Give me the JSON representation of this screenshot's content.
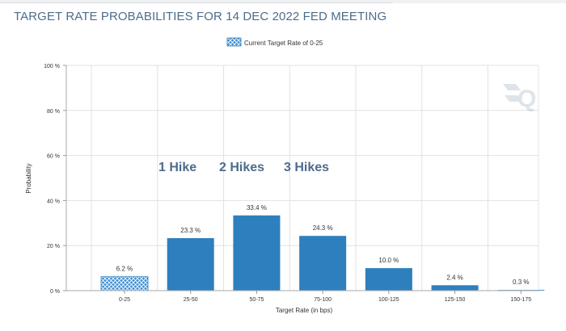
{
  "title": "TARGET RATE PROBABILITIES FOR 14 DEC 2022 FED MEETING",
  "legend_label": "Current Target Rate of 0-25",
  "annotations": [
    "1 Hike",
    "2 Hikes",
    "3 Hikes"
  ],
  "watermark": "Q",
  "colors": {
    "bar": "#2e7fbd",
    "current_bar": "#3d8ed0",
    "annotation": "#4d6c8c",
    "title": "#4d6c8c",
    "grid": "#e1e1e1"
  },
  "chart_data": {
    "type": "bar",
    "title": "TARGET RATE PROBABILITIES FOR 14 DEC 2022 FED MEETING",
    "xlabel": "Target Rate (in bps)",
    "ylabel": "Probability",
    "categories": [
      "0-25",
      "25-50",
      "50-75",
      "75-100",
      "100-125",
      "125-150",
      "150-175"
    ],
    "values": [
      6.2,
      23.3,
      33.4,
      24.3,
      10.0,
      2.4,
      0.3
    ],
    "data_labels": [
      "6.2 %",
      "23.3 %",
      "33.4 %",
      "24.3 %",
      "10.0 %",
      "2.4 %",
      "0.3 %"
    ],
    "current_category": "0-25",
    "ylim": [
      0,
      100
    ],
    "yticks": [
      0,
      20,
      40,
      60,
      80,
      100
    ],
    "ytick_labels": [
      "0 %",
      "20 %",
      "40 %",
      "60 %",
      "80 %",
      "100 %"
    ],
    "grid": true,
    "legend": "top-center"
  }
}
